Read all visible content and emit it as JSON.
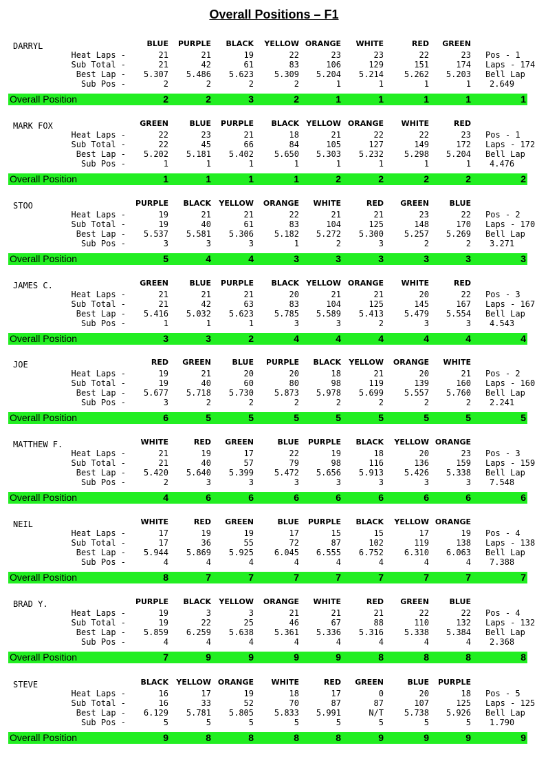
{
  "title": "Overall Positions – F1",
  "row_labels": {
    "heat_laps": "Heat Laps -",
    "sub_total": "Sub Total -",
    "best_lap": "Best Lap -",
    "sub_pos": "Sub Pos -"
  },
  "overall_label": "Overall Position",
  "racers": [
    {
      "name": "DARRYL",
      "colors": [
        "BLUE",
        "PURPLE",
        "BLACK",
        "YELLOW",
        "ORANGE",
        "WHITE",
        "RED",
        "GREEN"
      ],
      "heat_laps": [
        "21",
        "21",
        "19",
        "22",
        "23",
        "23",
        "22",
        "23"
      ],
      "sub_total": [
        "21",
        "42",
        "61",
        "83",
        "106",
        "129",
        "151",
        "174"
      ],
      "best_lap": [
        "5.307",
        "5.486",
        "5.623",
        "5.309",
        "5.204",
        "5.214",
        "5.262",
        "5.203"
      ],
      "sub_pos": [
        "2",
        "2",
        "2",
        "2",
        "1",
        "1",
        "1",
        "1"
      ],
      "overall": [
        "2",
        "2",
        "3",
        "2",
        "1",
        "1",
        "1",
        "1"
      ],
      "side_pos": "Pos - 1",
      "side_laps": "Laps - 174",
      "bell_label": "Bell Lap",
      "bell_value": "2.649",
      "final": "1"
    },
    {
      "name": "MARK FOX",
      "colors": [
        "GREEN",
        "BLUE",
        "PURPLE",
        "BLACK",
        "YELLOW",
        "ORANGE",
        "WHITE",
        "RED"
      ],
      "heat_laps": [
        "22",
        "23",
        "21",
        "18",
        "21",
        "22",
        "22",
        "23"
      ],
      "sub_total": [
        "22",
        "45",
        "66",
        "84",
        "105",
        "127",
        "149",
        "172"
      ],
      "best_lap": [
        "5.202",
        "5.181",
        "5.402",
        "5.650",
        "5.303",
        "5.232",
        "5.298",
        "5.204"
      ],
      "sub_pos": [
        "1",
        "1",
        "1",
        "1",
        "1",
        "1",
        "1",
        "1"
      ],
      "overall": [
        "1",
        "1",
        "1",
        "1",
        "2",
        "2",
        "2",
        "2"
      ],
      "side_pos": "Pos - 1",
      "side_laps": "Laps - 172",
      "bell_label": "Bell Lap",
      "bell_value": "4.476",
      "final": "2"
    },
    {
      "name": "STOO",
      "colors": [
        "PURPLE",
        "BLACK",
        "YELLOW",
        "ORANGE",
        "WHITE",
        "RED",
        "GREEN",
        "BLUE"
      ],
      "heat_laps": [
        "19",
        "21",
        "21",
        "22",
        "21",
        "21",
        "23",
        "22"
      ],
      "sub_total": [
        "19",
        "40",
        "61",
        "83",
        "104",
        "125",
        "148",
        "170"
      ],
      "best_lap": [
        "5.537",
        "5.581",
        "5.306",
        "5.182",
        "5.272",
        "5.300",
        "5.257",
        "5.269"
      ],
      "sub_pos": [
        "3",
        "3",
        "3",
        "1",
        "2",
        "3",
        "2",
        "2"
      ],
      "overall": [
        "5",
        "4",
        "4",
        "3",
        "3",
        "3",
        "3",
        "3"
      ],
      "side_pos": "Pos - 2",
      "side_laps": "Laps - 170",
      "bell_label": "Bell Lap",
      "bell_value": "3.271",
      "final": "3"
    },
    {
      "name": "JAMES C.",
      "colors": [
        "GREEN",
        "BLUE",
        "PURPLE",
        "BLACK",
        "YELLOW",
        "ORANGE",
        "WHITE",
        "RED"
      ],
      "heat_laps": [
        "21",
        "21",
        "21",
        "20",
        "21",
        "21",
        "20",
        "22"
      ],
      "sub_total": [
        "21",
        "42",
        "63",
        "83",
        "104",
        "125",
        "145",
        "167"
      ],
      "best_lap": [
        "5.416",
        "5.032",
        "5.623",
        "5.785",
        "5.589",
        "5.413",
        "5.479",
        "5.554"
      ],
      "sub_pos": [
        "1",
        "1",
        "1",
        "3",
        "3",
        "2",
        "3",
        "3"
      ],
      "overall": [
        "3",
        "3",
        "2",
        "4",
        "4",
        "4",
        "4",
        "4"
      ],
      "side_pos": "Pos - 3",
      "side_laps": "Laps - 167",
      "bell_label": "Bell Lap",
      "bell_value": "4.543",
      "final": "4"
    },
    {
      "name": "JOE",
      "colors": [
        "RED",
        "GREEN",
        "BLUE",
        "PURPLE",
        "BLACK",
        "YELLOW",
        "ORANGE",
        "WHITE"
      ],
      "heat_laps": [
        "19",
        "21",
        "20",
        "20",
        "18",
        "21",
        "20",
        "21"
      ],
      "sub_total": [
        "19",
        "40",
        "60",
        "80",
        "98",
        "119",
        "139",
        "160"
      ],
      "best_lap": [
        "5.677",
        "5.718",
        "5.730",
        "5.873",
        "5.978",
        "5.699",
        "5.557",
        "5.760"
      ],
      "sub_pos": [
        "3",
        "2",
        "2",
        "2",
        "2",
        "2",
        "2",
        "2"
      ],
      "overall": [
        "6",
        "5",
        "5",
        "5",
        "5",
        "5",
        "5",
        "5"
      ],
      "side_pos": "Pos - 2",
      "side_laps": "Laps - 160",
      "bell_label": "Bell Lap",
      "bell_value": "2.241",
      "final": "5"
    },
    {
      "name": "MATTHEW F.",
      "colors": [
        "WHITE",
        "RED",
        "GREEN",
        "BLUE",
        "PURPLE",
        "BLACK",
        "YELLOW",
        "ORANGE"
      ],
      "heat_laps": [
        "21",
        "19",
        "17",
        "22",
        "19",
        "18",
        "20",
        "23"
      ],
      "sub_total": [
        "21",
        "40",
        "57",
        "79",
        "98",
        "116",
        "136",
        "159"
      ],
      "best_lap": [
        "5.420",
        "5.640",
        "5.399",
        "5.472",
        "5.656",
        "5.913",
        "5.426",
        "5.338"
      ],
      "sub_pos": [
        "2",
        "3",
        "3",
        "3",
        "3",
        "3",
        "3",
        "3"
      ],
      "overall": [
        "4",
        "6",
        "6",
        "6",
        "6",
        "6",
        "6",
        "6"
      ],
      "side_pos": "Pos - 3",
      "side_laps": "Laps - 159",
      "bell_label": "Bell Lap",
      "bell_value": "7.548",
      "final": "6"
    },
    {
      "name": "NEIL",
      "colors": [
        "WHITE",
        "RED",
        "GREEN",
        "BLUE",
        "PURPLE",
        "BLACK",
        "YELLOW",
        "ORANGE"
      ],
      "heat_laps": [
        "17",
        "19",
        "19",
        "17",
        "15",
        "15",
        "17",
        "19"
      ],
      "sub_total": [
        "17",
        "36",
        "55",
        "72",
        "87",
        "102",
        "119",
        "138"
      ],
      "best_lap": [
        "5.944",
        "5.869",
        "5.925",
        "6.045",
        "6.555",
        "6.752",
        "6.310",
        "6.063"
      ],
      "sub_pos": [
        "4",
        "4",
        "4",
        "4",
        "4",
        "4",
        "4",
        "4"
      ],
      "overall": [
        "8",
        "7",
        "7",
        "7",
        "7",
        "7",
        "7",
        "7"
      ],
      "side_pos": "Pos - 4",
      "side_laps": "Laps - 138",
      "bell_label": "Bell Lap",
      "bell_value": "7.388",
      "final": "7"
    },
    {
      "name": "BRAD Y.",
      "colors": [
        "PURPLE",
        "BLACK",
        "YELLOW",
        "ORANGE",
        "WHITE",
        "RED",
        "GREEN",
        "BLUE"
      ],
      "heat_laps": [
        "19",
        "3",
        "3",
        "21",
        "21",
        "21",
        "22",
        "22"
      ],
      "sub_total": [
        "19",
        "22",
        "25",
        "46",
        "67",
        "88",
        "110",
        "132"
      ],
      "best_lap": [
        "5.859",
        "6.259",
        "5.638",
        "5.361",
        "5.336",
        "5.316",
        "5.338",
        "5.384"
      ],
      "sub_pos": [
        "4",
        "4",
        "4",
        "4",
        "4",
        "4",
        "4",
        "4"
      ],
      "overall": [
        "7",
        "9",
        "9",
        "9",
        "9",
        "8",
        "8",
        "8"
      ],
      "side_pos": "Pos - 4",
      "side_laps": "Laps - 132",
      "bell_label": "Bell Lap",
      "bell_value": "2.368",
      "final": "8"
    },
    {
      "name": "STEVE",
      "colors": [
        "BLACK",
        "YELLOW",
        "ORANGE",
        "WHITE",
        "RED",
        "GREEN",
        "BLUE",
        "PURPLE"
      ],
      "heat_laps": [
        "16",
        "17",
        "19",
        "18",
        "17",
        "0",
        "20",
        "18"
      ],
      "sub_total": [
        "16",
        "33",
        "52",
        "70",
        "87",
        "87",
        "107",
        "125"
      ],
      "best_lap": [
        "6.129",
        "5.781",
        "5.805",
        "5.833",
        "5.991",
        "N/T",
        "5.738",
        "5.926"
      ],
      "sub_pos": [
        "5",
        "5",
        "5",
        "5",
        "5",
        "5",
        "5",
        "5"
      ],
      "overall": [
        "9",
        "8",
        "8",
        "8",
        "8",
        "9",
        "9",
        "9"
      ],
      "side_pos": "Pos - 5",
      "side_laps": "Laps - 125",
      "bell_label": "Bell Lap",
      "bell_value": "1.790",
      "final": "9"
    }
  ]
}
